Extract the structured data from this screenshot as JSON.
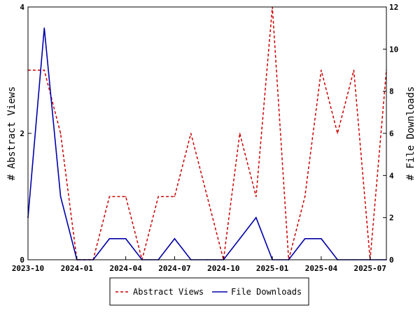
{
  "chart_data": {
    "type": "line",
    "x": [
      "2023-10",
      "2023-11",
      "2023-12",
      "2024-01",
      "2024-02",
      "2024-03",
      "2024-04",
      "2024-05",
      "2024-06",
      "2024-07",
      "2024-08",
      "2024-09",
      "2024-10",
      "2024-11",
      "2024-12",
      "2025-01",
      "2025-02",
      "2025-03",
      "2025-04",
      "2025-05",
      "2025-06",
      "2025-07",
      "2025-08"
    ],
    "x_tick_labels": [
      "2023-10",
      "2024-01",
      "2024-04",
      "2024-07",
      "2024-10",
      "2025-01",
      "2025-04",
      "2025-07"
    ],
    "series": [
      {
        "name": "Abstract Views",
        "axis": "left",
        "color": "#cc0000",
        "dash": "dashed",
        "values": [
          3,
          3,
          2,
          0,
          0,
          1,
          1,
          0,
          1,
          1,
          2,
          1,
          0,
          2,
          1,
          4,
          0,
          1,
          3,
          2,
          3,
          0,
          3
        ]
      },
      {
        "name": "File Downloads",
        "axis": "right",
        "color": "#0000aa",
        "dash": "solid",
        "values": [
          2,
          11,
          3,
          0,
          0,
          1,
          1,
          0,
          0,
          1,
          0,
          0,
          0,
          1,
          2,
          0,
          0,
          1,
          1,
          0,
          0,
          0,
          0
        ]
      }
    ],
    "ylabel_left": "# Abstract Views",
    "ylabel_right": "# File Downloads",
    "ylim_left": [
      0,
      4
    ],
    "ylim_right": [
      0,
      12
    ],
    "yticks_left": [
      "0",
      "2",
      "4"
    ],
    "yticks_right": [
      "0",
      "2",
      "4",
      "6",
      "8",
      "10",
      "12"
    ],
    "legend_position": "bottom-center",
    "grid": false
  }
}
